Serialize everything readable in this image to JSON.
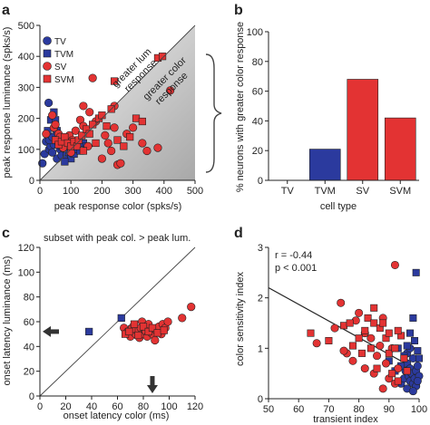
{
  "colors": {
    "tv": "#2b3a9e",
    "tvm": "#2b3a9e",
    "sv": "#e33333",
    "svm": "#e33333",
    "axis": "#222222",
    "gray": "#555555"
  },
  "chart_data": [
    {
      "panel": "a",
      "type": "scatter",
      "xlabel": "peak response color (spks/s)",
      "ylabel": "peak response luminance (spks/s)",
      "xlim": [
        0,
        500
      ],
      "ylim": [
        0,
        500
      ],
      "xticks": [
        "0",
        "100",
        "200",
        "300",
        "400",
        "500"
      ],
      "yticks": [
        "0",
        "100",
        "200",
        "300",
        "400",
        "500"
      ],
      "annotations": {
        "upper": [
          "greater lum",
          "response"
        ],
        "lower": [
          "greater color",
          "response"
        ]
      },
      "legend": {
        "placement": "top-left",
        "entries": [
          "TV",
          "TVM",
          "SV",
          "SVM"
        ]
      },
      "series": [
        {
          "name": "TV",
          "marker": "circle",
          "color": "#2b3a9e",
          "points": [
            [
              8,
              55
            ],
            [
              15,
              85
            ],
            [
              20,
              125
            ],
            [
              25,
              145
            ],
            [
              28,
              250
            ],
            [
              30,
              100
            ],
            [
              35,
              110
            ],
            [
              40,
              90
            ],
            [
              45,
              115
            ],
            [
              50,
              165
            ],
            [
              55,
              70
            ],
            [
              60,
              120
            ],
            [
              65,
              100
            ],
            [
              70,
              80
            ],
            [
              30,
              130
            ],
            [
              40,
              140
            ]
          ]
        },
        {
          "name": "TVM",
          "marker": "square",
          "color": "#2b3a9e",
          "points": [
            [
              25,
              160
            ],
            [
              35,
              195
            ],
            [
              45,
              220
            ],
            [
              50,
              195
            ],
            [
              55,
              160
            ],
            [
              60,
              130
            ],
            [
              70,
              110
            ],
            [
              85,
              80
            ],
            [
              95,
              90
            ],
            [
              100,
              70
            ],
            [
              110,
              85
            ],
            [
              120,
              100
            ],
            [
              130,
              95
            ],
            [
              140,
              120
            ],
            [
              80,
              60
            ],
            [
              150,
              110
            ]
          ]
        },
        {
          "name": "SV",
          "marker": "circle",
          "color": "#e33333",
          "points": [
            [
              20,
              150
            ],
            [
              40,
              210
            ],
            [
              45,
              170
            ],
            [
              50,
              180
            ],
            [
              60,
              150
            ],
            [
              65,
              140
            ],
            [
              75,
              105
            ],
            [
              80,
              130
            ],
            [
              95,
              145
            ],
            [
              100,
              90
            ],
            [
              105,
              130
            ],
            [
              115,
              160
            ],
            [
              130,
              195
            ],
            [
              140,
              175
            ],
            [
              155,
              110
            ],
            [
              160,
              220
            ],
            [
              170,
              330
            ],
            [
              180,
              190
            ],
            [
              200,
              70
            ],
            [
              210,
              145
            ],
            [
              220,
              120
            ],
            [
              230,
              95
            ],
            [
              240,
              170
            ],
            [
              250,
              50
            ],
            [
              260,
              55
            ],
            [
              280,
              150
            ],
            [
              300,
              170
            ],
            [
              330,
              120
            ],
            [
              345,
              95
            ],
            [
              380,
              105
            ],
            [
              420,
              290
            ],
            [
              240,
              240
            ],
            [
              140,
              240
            ]
          ]
        },
        {
          "name": "SVM",
          "marker": "square",
          "color": "#e33333",
          "points": [
            [
              50,
              130
            ],
            [
              60,
              115
            ],
            [
              70,
              125
            ],
            [
              80,
              140
            ],
            [
              90,
              120
            ],
            [
              100,
              110
            ],
            [
              110,
              125
            ],
            [
              120,
              110
            ],
            [
              125,
              130
            ],
            [
              135,
              145
            ],
            [
              150,
              165
            ],
            [
              160,
              150
            ],
            [
              170,
              180
            ],
            [
              190,
              200
            ],
            [
              200,
              210
            ],
            [
              215,
              175
            ],
            [
              230,
              230
            ],
            [
              240,
              320
            ],
            [
              250,
              130
            ],
            [
              270,
              110
            ],
            [
              290,
              140
            ],
            [
              310,
              200
            ],
            [
              330,
              190
            ],
            [
              380,
              395
            ],
            [
              395,
              400
            ],
            [
              140,
              95
            ],
            [
              180,
              120
            ]
          ]
        }
      ]
    },
    {
      "panel": "b",
      "type": "bar",
      "categories": [
        "TV",
        "TVM",
        "SV",
        "SVM"
      ],
      "values": [
        0,
        21,
        68,
        42
      ],
      "colors": [
        "#2b3a9e",
        "#2b3a9e",
        "#e33333",
        "#e33333"
      ],
      "xlabel": "cell type",
      "ylabel": "% neurons with greater color response",
      "ylim": [
        0,
        100
      ],
      "yticks": [
        "0",
        "20",
        "40",
        "60",
        "80",
        "100"
      ]
    },
    {
      "panel": "c",
      "type": "scatter",
      "title": "subset with peak col. > peak lum.",
      "xlabel": "onset latency color (ms)",
      "ylabel": "onset latency luminance (ms)",
      "xlim": [
        0,
        120
      ],
      "ylim": [
        0,
        120
      ],
      "xticks": [
        "0",
        "20",
        "40",
        "60",
        "80",
        "100",
        "120"
      ],
      "yticks": [
        "0",
        "20",
        "40",
        "60",
        "80",
        "100",
        "120"
      ],
      "arrows": {
        "y_arrow_at": 52,
        "x_arrow_at": 87
      },
      "series": [
        {
          "name": "TVM",
          "marker": "square",
          "color": "#2b3a9e",
          "points": [
            [
              38,
              52
            ],
            [
              63,
              63
            ]
          ]
        },
        {
          "name": "SV",
          "marker": "circle",
          "color": "#e33333",
          "points": [
            [
              65,
              55
            ],
            [
              68,
              52
            ],
            [
              70,
              48
            ],
            [
              72,
              56
            ],
            [
              74,
              50
            ],
            [
              75,
              53
            ],
            [
              77,
              47
            ],
            [
              78,
              55
            ],
            [
              80,
              50
            ],
            [
              82,
              52
            ],
            [
              83,
              48
            ],
            [
              85,
              54
            ],
            [
              86,
              51
            ],
            [
              88,
              49
            ],
            [
              90,
              53
            ],
            [
              92,
              56
            ],
            [
              94,
              50
            ],
            [
              95,
              58
            ],
            [
              97,
              55
            ],
            [
              99,
              60
            ],
            [
              110,
              63
            ],
            [
              117,
              72
            ],
            [
              79,
              60
            ],
            [
              84,
              58
            ],
            [
              89,
              45
            ]
          ]
        },
        {
          "name": "SVM",
          "marker": "square",
          "color": "#e33333",
          "points": [
            [
              66,
              50
            ],
            [
              71,
              54
            ],
            [
              73,
              58
            ],
            [
              76,
              49
            ],
            [
              80,
              56
            ],
            [
              84,
              52
            ],
            [
              87,
              55
            ],
            [
              91,
              51
            ],
            [
              96,
              53
            ],
            [
              69,
              52
            ]
          ]
        }
      ]
    },
    {
      "panel": "d",
      "type": "scatter",
      "xlabel": "transient index",
      "ylabel": "color sensitivity index",
      "xlim": [
        50,
        100
      ],
      "ylim": [
        0,
        3
      ],
      "xticks": [
        "50",
        "60",
        "70",
        "80",
        "90",
        "100"
      ],
      "yticks": [
        "0",
        "1",
        "2",
        "3"
      ],
      "stats": [
        "r = -0.44",
        "p < 0.001"
      ],
      "fit_line": {
        "x": [
          50,
          100
        ],
        "y": [
          2.2,
          0.55
        ]
      },
      "series": [
        {
          "name": "TV",
          "marker": "circle",
          "color": "#2b3a9e",
          "points": [
            [
              94,
              0.3
            ],
            [
              95,
              0.4
            ],
            [
              95.5,
              0.55
            ],
            [
              96,
              0.7
            ],
            [
              96,
              0.2
            ],
            [
              96.5,
              0.45
            ],
            [
              97,
              0.35
            ],
            [
              97,
              0.6
            ],
            [
              97.5,
              0.5
            ],
            [
              98,
              0.3
            ],
            [
              98,
              0.8
            ],
            [
              98.5,
              0.4
            ],
            [
              99,
              0.55
            ],
            [
              99,
              0.25
            ],
            [
              99.5,
              0.65
            ],
            [
              100,
              0.45
            ],
            [
              96,
              0.9
            ],
            [
              97,
              1.0
            ],
            [
              98,
              0.15
            ],
            [
              99.5,
              0.35
            ]
          ]
        },
        {
          "name": "TVM",
          "marker": "square",
          "color": "#2b3a9e",
          "points": [
            [
              99,
              2.5
            ],
            [
              98,
              1.6
            ],
            [
              97,
              1.3
            ],
            [
              96,
              1.05
            ],
            [
              95,
              0.85
            ],
            [
              98.5,
              1.15
            ],
            [
              99.5,
              0.95
            ],
            [
              100,
              0.8
            ],
            [
              94,
              0.65
            ],
            [
              92,
              0.55
            ],
            [
              93,
              1.0
            ],
            [
              90,
              0.75
            ]
          ]
        },
        {
          "name": "SV",
          "marker": "circle",
          "color": "#e33333",
          "points": [
            [
              66,
              1.1
            ],
            [
              72,
              1.4
            ],
            [
              74,
              1.9
            ],
            [
              76,
              0.9
            ],
            [
              78,
              0.75
            ],
            [
              80,
              1.7
            ],
            [
              82,
              0.6
            ],
            [
              84,
              1.2
            ],
            [
              85,
              0.5
            ],
            [
              86,
              0.85
            ],
            [
              88,
              1.6
            ],
            [
              89,
              0.7
            ],
            [
              90,
              0.4
            ],
            [
              91,
              1.0
            ],
            [
              92,
              2.65
            ],
            [
              92,
              0.3
            ],
            [
              93,
              0.6
            ],
            [
              88,
              0.2
            ],
            [
              82,
              1.3
            ],
            [
              79,
              1.55
            ],
            [
              87,
              1.05
            ],
            [
              75,
              0.95
            ]
          ]
        },
        {
          "name": "SVM",
          "marker": "square",
          "color": "#e33333",
          "points": [
            [
              64,
              1.3
            ],
            [
              70,
              1.15
            ],
            [
              75,
              1.45
            ],
            [
              77,
              1.5
            ],
            [
              80,
              1.2
            ],
            [
              81,
              0.9
            ],
            [
              82,
              1.35
            ],
            [
              83,
              1.6
            ],
            [
              84,
              1.0
            ],
            [
              85,
              1.5
            ],
            [
              86,
              0.6
            ],
            [
              87,
              1.4
            ],
            [
              88,
              1.5
            ],
            [
              89,
              1.2
            ],
            [
              90,
              0.9
            ],
            [
              91,
              0.5
            ],
            [
              92,
              1.0
            ],
            [
              93,
              0.35
            ],
            [
              94,
              1.25
            ],
            [
              95,
              0.8
            ],
            [
              96,
              0.55
            ],
            [
              93,
              1.35
            ],
            [
              85,
              1.8
            ],
            [
              78,
              1.05
            ],
            [
              90,
              1.3
            ]
          ]
        }
      ]
    }
  ]
}
